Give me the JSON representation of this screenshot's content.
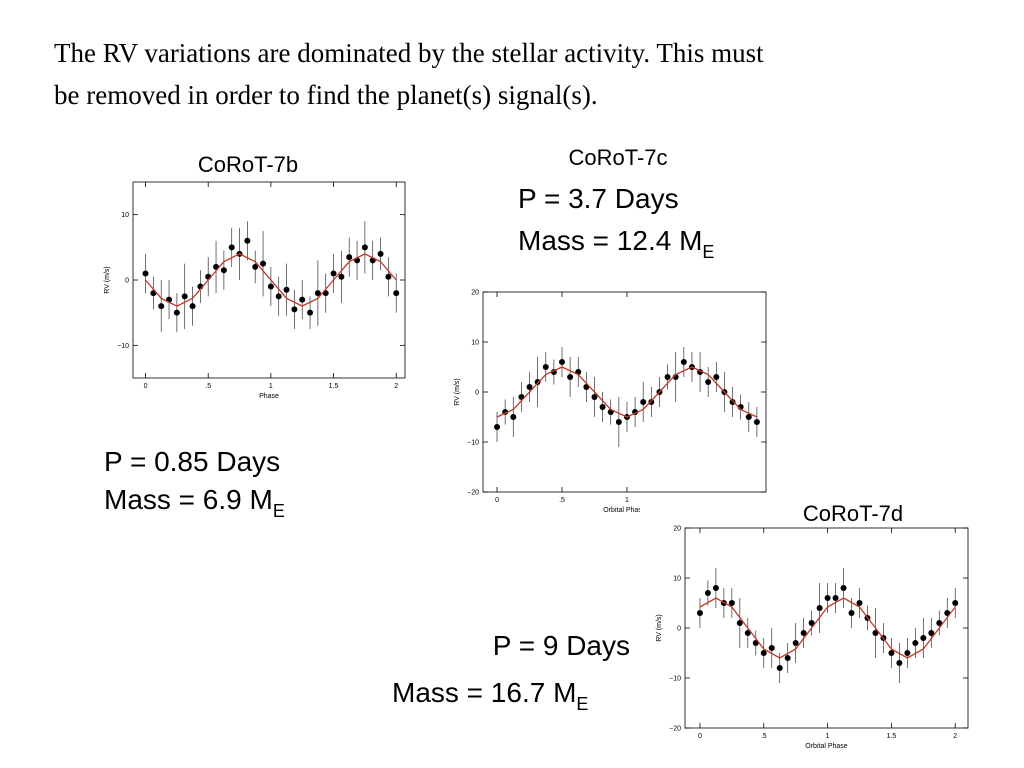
{
  "intro": [
    "The RV variations are dominated by the stellar activity. This must",
    "be removed in order to find the planet(s) signal(s)."
  ],
  "chart_data": [
    {
      "type": "scatter",
      "title": "CoRoT-7b",
      "xlabel": "Phase",
      "ylabel": "RV (m/s)",
      "period": "P = 0.85 Days",
      "mass": "Mass = 6.9 M",
      "mass_subscript": "E",
      "xlim": [
        -0.1,
        2.07
      ],
      "ylim": [
        -15,
        15
      ],
      "xticks": [
        0,
        {
          "value": 0.5,
          "label": ".5"
        },
        1,
        1.5,
        2
      ],
      "yticks": [
        {
          "value": -10,
          "label": "−10"
        },
        0,
        10
      ],
      "series": [
        {
          "color": "#000000",
          "x": [
            0,
            0.0625,
            0.125,
            0.1875,
            0.25,
            0.3125,
            0.375,
            0.4375,
            0.5,
            0.5625,
            0.625,
            0.6875,
            0.75,
            0.8125,
            0.875,
            0.9375,
            1,
            1.0625,
            1.125,
            1.1875,
            1.25,
            1.3125,
            1.375,
            1.4375,
            1.5,
            1.5625,
            1.625,
            1.6875,
            1.75,
            1.8125,
            1.875,
            1.9375,
            2
          ],
          "values": [
            1,
            -2,
            -4,
            -3,
            -5,
            -2.5,
            -4,
            -1,
            0.5,
            2,
            1.5,
            5,
            4,
            6,
            2,
            2.5,
            -1,
            -2.5,
            -1.5,
            -4.5,
            -3,
            -5,
            -2,
            -2,
            1,
            0.5,
            3.5,
            3,
            5,
            3,
            4,
            0.5,
            -2
          ],
          "errors": [
            3,
            2.5,
            4,
            3,
            3,
            5,
            3,
            2.5,
            3,
            4,
            3,
            3,
            4,
            3,
            2.5,
            5,
            3,
            3,
            4,
            3,
            3,
            2.5,
            5,
            3,
            3,
            4,
            3,
            3,
            4,
            3,
            2.5,
            3,
            3
          ]
        },
        {
          "type": "line",
          "color": "#c0392b",
          "x": [
            0,
            0.125,
            0.25,
            0.375,
            0.5,
            0.625,
            0.75,
            0.875,
            1,
            1.125,
            1.25,
            1.375,
            1.5,
            1.625,
            1.75,
            1.875,
            2
          ],
          "values": [
            0,
            -2.8,
            -4,
            -2.8,
            0,
            2.8,
            4,
            2.8,
            0,
            -2.8,
            -4,
            -2.8,
            0,
            2.8,
            4,
            2.8,
            0
          ]
        }
      ]
    },
    {
      "type": "scatter",
      "title": "CoRoT-7c",
      "xlabel": "Orbital Phase",
      "ylabel": "RV (m/s)",
      "period": "P = 3.7 Days",
      "mass": "Mass = 12.4 M",
      "mass_subscript": "E",
      "xlim": [
        -0.108,
        2.07
      ],
      "ylim": [
        -20,
        20
      ],
      "xticks": [
        0,
        {
          "value": 0.5,
          "label": ".5"
        },
        1
      ],
      "yticks": [
        {
          "value": -20,
          "label": "−20"
        },
        {
          "value": -10,
          "label": "−10"
        },
        0,
        10,
        20
      ],
      "series": [
        {
          "color": "#000000",
          "x": [
            0,
            0.0625,
            0.125,
            0.1875,
            0.25,
            0.3125,
            0.375,
            0.4375,
            0.5,
            0.5625,
            0.625,
            0.6875,
            0.75,
            0.8125,
            0.875,
            0.9375,
            1,
            1.0625,
            1.125,
            1.1875,
            1.25,
            1.3125,
            1.375,
            1.4375,
            1.5,
            1.5625,
            1.625,
            1.6875,
            1.75,
            1.8125,
            1.875,
            1.9375,
            2
          ],
          "values": [
            -7,
            -4,
            -5,
            -1,
            1,
            2,
            5,
            4,
            6,
            3,
            4,
            1,
            -1,
            -3,
            -4,
            -6,
            -5,
            -4,
            -2,
            -2,
            0,
            3,
            3,
            6,
            5,
            4,
            2,
            3,
            0,
            -2,
            -3,
            -5,
            -6
          ],
          "errors": [
            3,
            2.5,
            4,
            3,
            3,
            5,
            3,
            2.5,
            3,
            4,
            3,
            3,
            4,
            3,
            2.5,
            5,
            3,
            3,
            4,
            3,
            3,
            2.5,
            5,
            3,
            3,
            4,
            3,
            3,
            4,
            3,
            2.5,
            3,
            3
          ]
        },
        {
          "type": "line",
          "color": "#c0392b",
          "x": [
            0,
            0.125,
            0.25,
            0.375,
            0.5,
            0.625,
            0.75,
            0.875,
            1,
            1.125,
            1.25,
            1.375,
            1.5,
            1.625,
            1.75,
            1.875,
            2
          ],
          "values": [
            -5,
            -3.5,
            0,
            3.5,
            5,
            3.5,
            0,
            -3.5,
            -5,
            -3.5,
            0,
            3.5,
            5,
            3.5,
            0,
            -3.5,
            -5
          ]
        }
      ]
    },
    {
      "type": "scatter",
      "title": "CoRoT-7d",
      "xlabel": "Orbital Phase",
      "ylabel": "RV (m/s)",
      "period": "P = 9 Days",
      "mass": "Mass = 16.7 M",
      "mass_subscript": "E",
      "xlim": [
        -0.117,
        2.1
      ],
      "ylim": [
        -20,
        20
      ],
      "xticks": [
        0,
        {
          "value": 0.5,
          "label": ".5"
        },
        1,
        1.5,
        2
      ],
      "yticks": [
        {
          "value": -20,
          "label": "−20"
        },
        {
          "value": -10,
          "label": "−10"
        },
        0,
        10,
        20
      ],
      "series": [
        {
          "color": "#000000",
          "x": [
            0,
            0.0625,
            0.125,
            0.1875,
            0.25,
            0.3125,
            0.375,
            0.4375,
            0.5,
            0.5625,
            0.625,
            0.6875,
            0.75,
            0.8125,
            0.875,
            0.9375,
            1,
            1.0625,
            1.125,
            1.1875,
            1.25,
            1.3125,
            1.375,
            1.4375,
            1.5,
            1.5625,
            1.625,
            1.6875,
            1.75,
            1.8125,
            1.875,
            1.9375,
            2
          ],
          "values": [
            3,
            7,
            8,
            5,
            5,
            1,
            -1,
            -3,
            -5,
            -4,
            -8,
            -6,
            -3,
            -1,
            1,
            4,
            6,
            6,
            8,
            3,
            5,
            2,
            -1,
            -2,
            -5,
            -7,
            -5,
            -3,
            -2,
            -1,
            1,
            3,
            5
          ],
          "errors": [
            3,
            2.5,
            4,
            3,
            3,
            5,
            3,
            2.5,
            3,
            4,
            3,
            3,
            4,
            3,
            2.5,
            5,
            3,
            3,
            4,
            3,
            3,
            2.5,
            5,
            3,
            3,
            4,
            3,
            3,
            4,
            3,
            2.5,
            3,
            3
          ]
        },
        {
          "type": "line",
          "color": "#c0392b",
          "x": [
            0,
            0.125,
            0.25,
            0.375,
            0.5,
            0.625,
            0.75,
            0.875,
            1,
            1.125,
            1.25,
            1.375,
            1.5,
            1.625,
            1.75,
            1.875,
            2
          ],
          "values": [
            4.2,
            6,
            4.2,
            0,
            -4.2,
            -6,
            -4.2,
            0,
            4.2,
            6,
            4.2,
            0,
            -4.2,
            -6,
            -4.2,
            0,
            4.2
          ]
        }
      ]
    }
  ]
}
